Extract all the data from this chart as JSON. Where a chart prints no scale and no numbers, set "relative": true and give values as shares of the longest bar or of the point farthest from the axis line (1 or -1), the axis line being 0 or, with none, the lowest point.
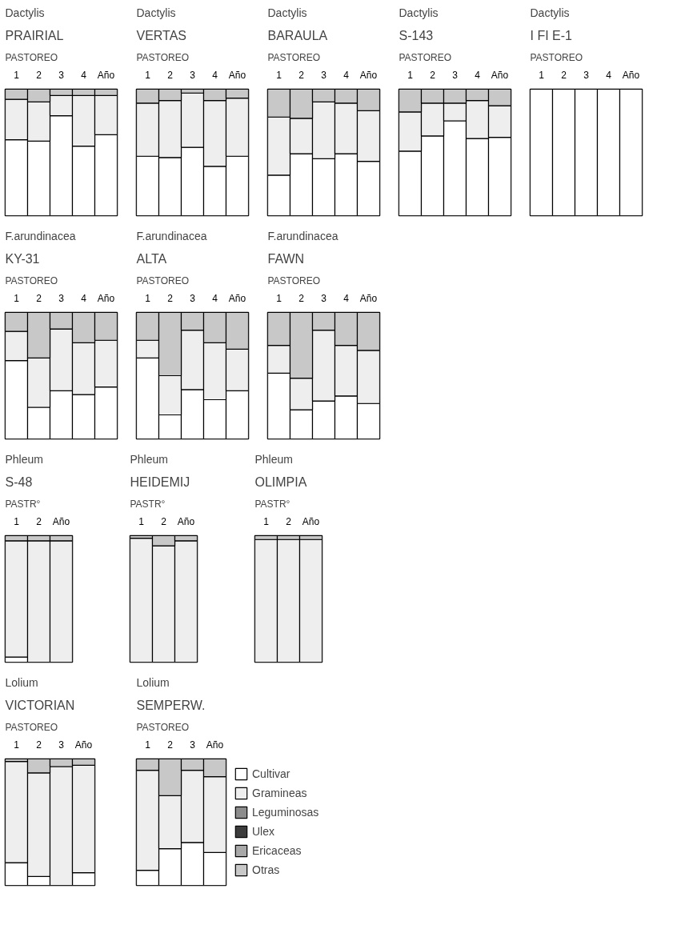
{
  "chart_data": [
    {
      "type": "bar",
      "title": "Dactylis",
      "subtitle": "PRAIRIAL",
      "annotations": [
        "PASTOREO"
      ],
      "categories": [
        "1",
        "2",
        "3",
        "4",
        "Año"
      ],
      "stacked": true,
      "relative": true,
      "tick_labels": "x",
      "series": [
        {
          "color": "#ffffff",
          "values": [
            0.6,
            0.59,
            0.79,
            0.55,
            0.64
          ]
        },
        {
          "color": "#eeeeee",
          "values": [
            0.32,
            0.31,
            0.16,
            0.4,
            0.31
          ]
        },
        {
          "color": "#c8c8c8",
          "values": [
            0.08,
            0.1,
            0.05,
            0.05,
            0.05
          ]
        }
      ]
    },
    {
      "type": "bar",
      "title": "Dactylis",
      "subtitle": "VERTAS",
      "annotations": [
        "PASTOREO"
      ],
      "categories": [
        "1",
        "2",
        "3",
        "4",
        "Año"
      ],
      "stacked": true,
      "relative": true,
      "tick_labels": "x",
      "series": [
        {
          "color": "#ffffff",
          "values": [
            0.47,
            0.46,
            0.54,
            0.39,
            0.47
          ]
        },
        {
          "color": "#eeeeee",
          "values": [
            0.42,
            0.45,
            0.43,
            0.52,
            0.46
          ]
        },
        {
          "color": "#c8c8c8",
          "values": [
            0.11,
            0.09,
            0.03,
            0.09,
            0.07
          ]
        }
      ]
    },
    {
      "type": "bar",
      "title": "Dactylis",
      "subtitle": "BARAULA",
      "annotations": [
        "PASTOREO"
      ],
      "categories": [
        "1",
        "2",
        "3",
        "4",
        "Año"
      ],
      "stacked": true,
      "relative": true,
      "tick_labels": "x",
      "series": [
        {
          "color": "#ffffff",
          "values": [
            0.32,
            0.49,
            0.45,
            0.49,
            0.43
          ]
        },
        {
          "color": "#eeeeee",
          "values": [
            0.46,
            0.28,
            0.45,
            0.4,
            0.4
          ]
        },
        {
          "color": "#c8c8c8",
          "values": [
            0.22,
            0.23,
            0.1,
            0.11,
            0.17
          ]
        }
      ]
    },
    {
      "type": "bar",
      "title": "Dactylis",
      "subtitle": "S-143",
      "annotations": [
        "PASTOREO"
      ],
      "categories": [
        "1",
        "2",
        "3",
        "4",
        "Año"
      ],
      "stacked": true,
      "relative": true,
      "tick_labels": "x",
      "series": [
        {
          "color": "#ffffff",
          "values": [
            0.51,
            0.63,
            0.75,
            0.61,
            0.62
          ]
        },
        {
          "color": "#eeeeee",
          "values": [
            0.31,
            0.26,
            0.14,
            0.3,
            0.25
          ]
        },
        {
          "color": "#c8c8c8",
          "values": [
            0.18,
            0.11,
            0.11,
            0.09,
            0.13
          ]
        }
      ]
    },
    {
      "type": "bar",
      "title": "Dactylis",
      "subtitle": "I FI E-1",
      "annotations": [
        "PASTOREO"
      ],
      "categories": [
        "1",
        "2",
        "3",
        "4",
        "Año"
      ],
      "stacked": true,
      "relative": true,
      "tick_labels": "x",
      "series": [
        {
          "color": "#ffffff",
          "values": [
            1,
            1,
            1,
            1,
            1
          ]
        },
        {
          "color": "#eeeeee",
          "values": [
            null,
            null,
            null,
            null,
            null
          ]
        },
        {
          "color": "#c8c8c8",
          "values": [
            null,
            null,
            null,
            null,
            null
          ]
        }
      ]
    },
    {
      "type": "bar",
      "title": "F.arundinacea",
      "subtitle": "KY-31",
      "annotations": [
        "PASTOREO"
      ],
      "categories": [
        "1",
        "2",
        "3",
        "4",
        "Año"
      ],
      "stacked": true,
      "relative": true,
      "tick_labels": "x",
      "series": [
        {
          "color": "#ffffff",
          "values": [
            0.62,
            0.25,
            0.38,
            0.35,
            0.41
          ]
        },
        {
          "color": "#eeeeee",
          "values": [
            0.23,
            0.39,
            0.49,
            0.41,
            0.37
          ]
        },
        {
          "color": "#c8c8c8",
          "values": [
            0.15,
            0.36,
            0.13,
            0.24,
            0.22
          ]
        }
      ]
    },
    {
      "type": "bar",
      "title": "F.arundinacea",
      "subtitle": "ALTA",
      "annotations": [
        "PASTOREO"
      ],
      "categories": [
        "1",
        "2",
        "3",
        "4",
        "Año"
      ],
      "stacked": true,
      "relative": true,
      "tick_labels": "x",
      "series": [
        {
          "color": "#ffffff",
          "values": [
            0.64,
            0.19,
            0.39,
            0.31,
            0.38
          ]
        },
        {
          "color": "#eeeeee",
          "values": [
            0.14,
            0.31,
            0.47,
            0.45,
            0.33
          ]
        },
        {
          "color": "#c8c8c8",
          "values": [
            0.22,
            0.5,
            0.14,
            0.24,
            0.29
          ]
        }
      ]
    },
    {
      "type": "bar",
      "title": "F.arundinacea",
      "subtitle": "FAWN",
      "annotations": [
        "PASTOREO"
      ],
      "categories": [
        "1",
        "2",
        "3",
        "4",
        "Año"
      ],
      "stacked": true,
      "relative": true,
      "tick_labels": "x",
      "series": [
        {
          "color": "#ffffff",
          "values": [
            0.52,
            0.23,
            0.3,
            0.34,
            0.28
          ]
        },
        {
          "color": "#eeeeee",
          "values": [
            0.22,
            0.25,
            0.56,
            0.4,
            0.42
          ]
        },
        {
          "color": "#c8c8c8",
          "values": [
            0.26,
            0.52,
            0.14,
            0.26,
            0.3
          ]
        }
      ]
    },
    {
      "type": "bar",
      "title": "Phleum",
      "subtitle": "S-48",
      "annotations": [
        "PASTR°"
      ],
      "categories": [
        "1",
        "2",
        "Año"
      ],
      "stacked": true,
      "relative": true,
      "tick_labels": "x",
      "series": [
        {
          "color": "#ffffff",
          "values": [
            0.04,
            null,
            null
          ]
        },
        {
          "color": "#eeeeee",
          "values": [
            0.92,
            0.96,
            0.96
          ]
        },
        {
          "color": "#c8c8c8",
          "values": [
            0.04,
            0.04,
            0.04
          ]
        }
      ]
    },
    {
      "type": "bar",
      "title": "Phleum",
      "subtitle": "HEIDEMIJ",
      "annotations": [
        "PASTR°"
      ],
      "categories": [
        "1",
        "2",
        "Año"
      ],
      "stacked": true,
      "relative": true,
      "tick_labels": "x",
      "series": [
        {
          "color": "#ffffff",
          "values": [
            null,
            null,
            null
          ]
        },
        {
          "color": "#eeeeee",
          "values": [
            0.98,
            0.92,
            0.96
          ]
        },
        {
          "color": "#c8c8c8",
          "values": [
            0.02,
            0.08,
            0.04
          ]
        }
      ]
    },
    {
      "type": "bar",
      "title": "Phleum",
      "subtitle": "OLIMPIA",
      "annotations": [
        "PASTR°"
      ],
      "categories": [
        "1",
        "2",
        "Año"
      ],
      "stacked": true,
      "relative": true,
      "tick_labels": "x",
      "series": [
        {
          "color": "#ffffff",
          "values": [
            null,
            null,
            null
          ]
        },
        {
          "color": "#eeeeee",
          "values": [
            0.97,
            0.97,
            0.97
          ]
        },
        {
          "color": "#c8c8c8",
          "values": [
            0.03,
            0.03,
            0.03
          ]
        }
      ]
    },
    {
      "type": "bar",
      "title": "Lolium",
      "subtitle": "VICTORIAN",
      "annotations": [
        "PASTOREO"
      ],
      "categories": [
        "1",
        "2",
        "3",
        "Año"
      ],
      "stacked": true,
      "relative": true,
      "tick_labels": "x",
      "series": [
        {
          "color": "#ffffff",
          "values": [
            0.18,
            0.07,
            null,
            0.1
          ]
        },
        {
          "color": "#eeeeee",
          "values": [
            0.8,
            0.82,
            0.94,
            0.85
          ]
        },
        {
          "color": "#c8c8c8",
          "values": [
            0.02,
            0.11,
            0.06,
            0.05
          ]
        }
      ]
    },
    {
      "type": "bar",
      "title": "Lolium",
      "subtitle": "SEMPERW.",
      "annotations": [
        "PASTOREO"
      ],
      "categories": [
        "1",
        "2",
        "3",
        "Año"
      ],
      "stacked": true,
      "relative": true,
      "tick_labels": "x",
      "legend": "right",
      "series": [
        {
          "name": "Cultivar",
          "color": "#ffffff",
          "values": [
            0.12,
            0.29,
            0.34,
            0.26
          ]
        },
        {
          "name": "Gramineas",
          "color": "#eeeeee",
          "values": [
            0.79,
            0.42,
            0.57,
            0.6
          ]
        },
        {
          "name": "Leguminosas",
          "color": "#8c8c8c",
          "values": [
            null,
            null,
            null,
            null
          ]
        },
        {
          "name": "Ulex",
          "color": "#3c3c3c",
          "values": [
            null,
            null,
            null,
            null
          ]
        },
        {
          "name": "Ericaceas",
          "color": "#a8a8a8",
          "values": [
            null,
            null,
            null,
            null
          ]
        },
        {
          "name": "Otras",
          "color": "#c8c8c8",
          "values": [
            0.09,
            0.29,
            0.09,
            0.14
          ]
        }
      ]
    }
  ]
}
